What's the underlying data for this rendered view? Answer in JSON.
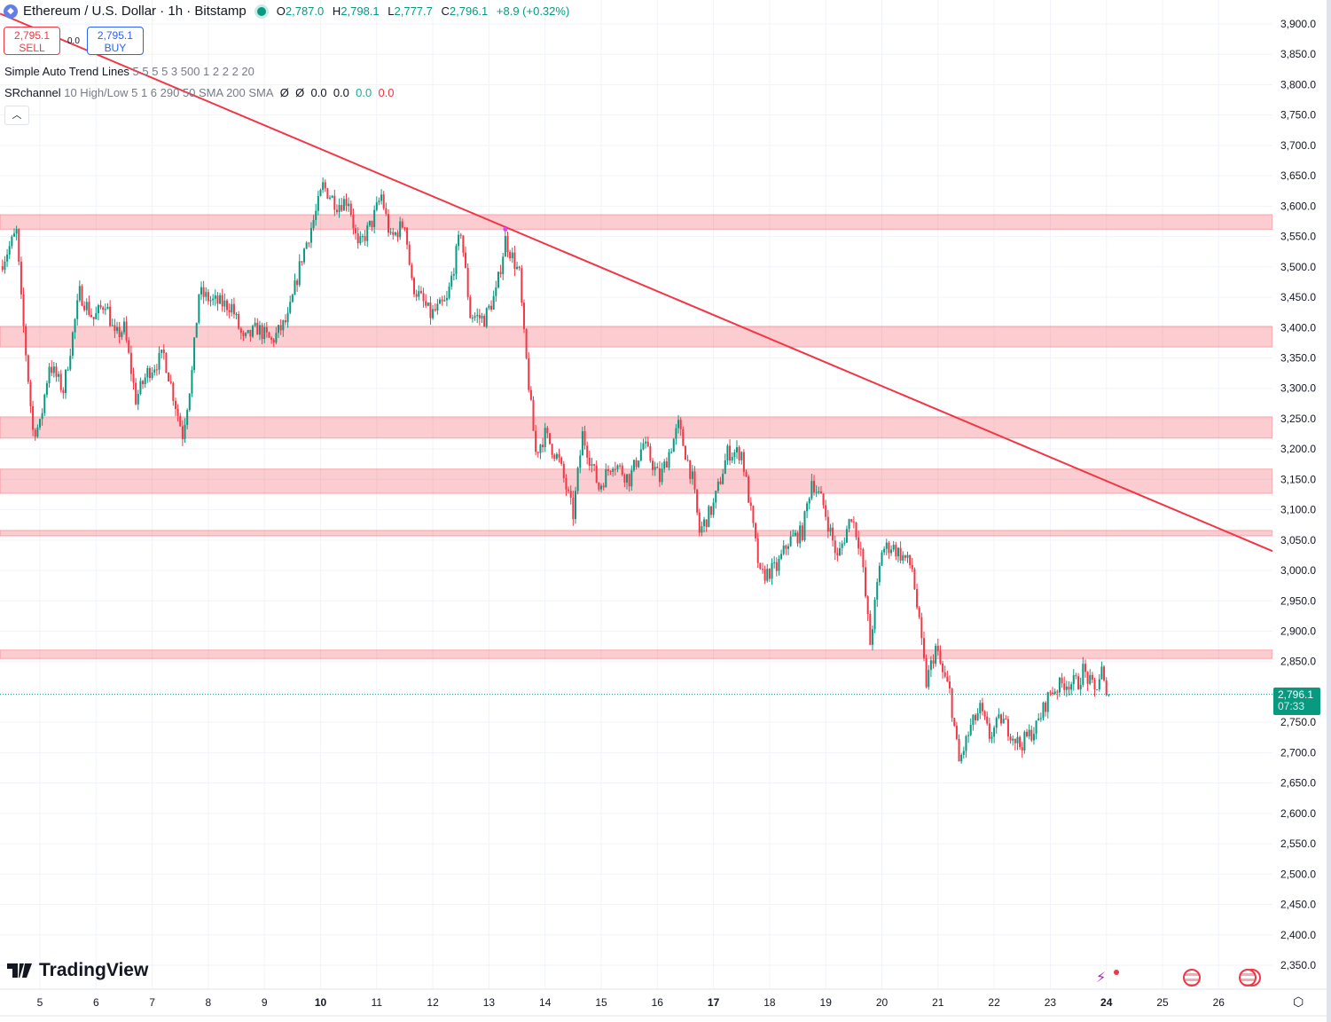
{
  "header": {
    "symbol_title": "Ethereum / U.S. Dollar · 1h · Bitstamp",
    "status": "market-open",
    "ohlc": {
      "o_label": "O",
      "o": "2,787.0",
      "h_label": "H",
      "h": "2,798.1",
      "l_label": "L",
      "l": "2,777.7",
      "c_label": "C",
      "c": "2,796.1",
      "change": "+8.9 (+0.32%)"
    }
  },
  "trade": {
    "sell_price": "2,795.1",
    "sell_label": "SELL",
    "spread": "0.0",
    "buy_price": "2,795.1",
    "buy_label": "BUY"
  },
  "indicators": [
    {
      "name": "Simple Auto Trend Lines",
      "params": "5 5 5 5 3 500 1 2 2 2 20"
    },
    {
      "name": "SRchannel",
      "params": "10 High/Low 5 1 6 290 50 SMA 200 SMA",
      "values": [
        "Ø",
        "Ø",
        "0.0",
        "0.0"
      ],
      "green": "0.0",
      "red": "0.0"
    }
  ],
  "collapse_icon": "chevron-up-icon",
  "logo_text": "TradingView",
  "current_price": {
    "price": "2,796.1",
    "countdown": "07:33"
  },
  "colors": {
    "up": "#089981",
    "down": "#f23645",
    "trend": "#f23645",
    "zone": "#f7a8b3",
    "grid": "#f0f3fa",
    "buy": "#2962ff"
  },
  "chart_data": {
    "type": "candlestick",
    "interval": "1h",
    "x_tick_labels": [
      "5",
      "6",
      "7",
      "8",
      "9",
      "10",
      "11",
      "12",
      "13",
      "14",
      "15",
      "16",
      "17",
      "18",
      "19",
      "20",
      "21",
      "22",
      "23",
      "24",
      "25",
      "26"
    ],
    "bold_x_ticks": [
      "10",
      "17",
      "24"
    ],
    "y_tick_labels": [
      "3,900.0",
      "3,850.0",
      "3,800.0",
      "3,750.0",
      "3,700.0",
      "3,650.0",
      "3,600.0",
      "3,550.0",
      "3,500.0",
      "3,450.0",
      "3,400.0",
      "3,350.0",
      "3,300.0",
      "3,250.0",
      "3,200.0",
      "3,150.0",
      "3,100.0",
      "3,050.0",
      "3,000.0",
      "2,950.0",
      "2,900.0",
      "2,850.0",
      "2,800.0",
      "2,750.0",
      "2,700.0",
      "2,650.0",
      "2,600.0",
      "2,550.0",
      "2,500.0",
      "2,450.0",
      "2,400.0",
      "2,350.0"
    ],
    "ylim": [
      2330,
      3930
    ],
    "grid": true,
    "price_path": [
      [
        "4 07:00",
        3501
      ],
      [
        "4 14:00",
        3557
      ],
      [
        "4 16:00",
        3443
      ],
      [
        "4 21:00",
        3230
      ],
      [
        "5 00:00",
        3238
      ],
      [
        "5 04:00",
        3340
      ],
      [
        "5 10:00",
        3297
      ],
      [
        "5 17:00",
        3457
      ],
      [
        "5 23:00",
        3414
      ],
      [
        "6 04:00",
        3443
      ],
      [
        "6 08:00",
        3384
      ],
      [
        "6 12:00",
        3399
      ],
      [
        "6 17:00",
        3282
      ],
      [
        "6 22:00",
        3326
      ],
      [
        "7 05:00",
        3355
      ],
      [
        "7 13:00",
        3224
      ],
      [
        "7 17:00",
        3326
      ],
      [
        "7 20:00",
        3457
      ],
      [
        "8 02:00",
        3443
      ],
      [
        "8 10:00",
        3435
      ],
      [
        "8 15:00",
        3377
      ],
      [
        "8 21:00",
        3399
      ],
      [
        "9 03:00",
        3377
      ],
      [
        "9 10:00",
        3414
      ],
      [
        "9 16:00",
        3516
      ],
      [
        "9 22:00",
        3589
      ],
      [
        "10 01:00",
        3633
      ],
      [
        "10 07:00",
        3603
      ],
      [
        "10 12:00",
        3611
      ],
      [
        "10 16:00",
        3530
      ],
      [
        "10 22:00",
        3574
      ],
      [
        "11 02:00",
        3618
      ],
      [
        "11 06:00",
        3545
      ],
      [
        "11 12:00",
        3574
      ],
      [
        "11 15:00",
        3472
      ],
      [
        "11 23:00",
        3421
      ],
      [
        "12 06:00",
        3443
      ],
      [
        "12 12:00",
        3560
      ],
      [
        "12 16:00",
        3421
      ],
      [
        "12 22:00",
        3414
      ],
      [
        "13 03:00",
        3457
      ],
      [
        "13 07:00",
        3545
      ],
      [
        "13 13:00",
        3487
      ],
      [
        "13 15:00",
        3384
      ],
      [
        "13 18:00",
        3267
      ],
      [
        "13 20:00",
        3194
      ],
      [
        "14 00:00",
        3224
      ],
      [
        "14 06:00",
        3180
      ],
      [
        "14 12:00",
        3092
      ],
      [
        "14 16:00",
        3224
      ],
      [
        "14 23:00",
        3136
      ],
      [
        "15 05:00",
        3180
      ],
      [
        "15 12:00",
        3150
      ],
      [
        "15 18:00",
        3209
      ],
      [
        "16 01:00",
        3150
      ],
      [
        "16 09:00",
        3238
      ],
      [
        "16 15:00",
        3150
      ],
      [
        "16 18:00",
        3063
      ],
      [
        "17 00:00",
        3107
      ],
      [
        "17 06:00",
        3194
      ],
      [
        "17 12:00",
        3194
      ],
      [
        "17 15:00",
        3121
      ],
      [
        "17 20:00",
        2990
      ],
      [
        "18 03:00",
        3004
      ],
      [
        "18 08:00",
        3048
      ],
      [
        "18 14:00",
        3063
      ],
      [
        "18 18:00",
        3150
      ],
      [
        "18 23:00",
        3107
      ],
      [
        "19 05:00",
        3019
      ],
      [
        "19 11:00",
        3092
      ],
      [
        "19 15:00",
        3034
      ],
      [
        "19 19:00",
        2880
      ],
      [
        "20 00:00",
        3034
      ],
      [
        "20 04:00",
        3041
      ],
      [
        "20 10:00",
        3019
      ],
      [
        "20 13:00",
        3004
      ],
      [
        "20 19:00",
        2815
      ],
      [
        "20 23:00",
        2873
      ],
      [
        "21 02:00",
        2830
      ],
      [
        "21 05:00",
        2800
      ],
      [
        "21 09:00",
        2683
      ],
      [
        "21 14:00",
        2742
      ],
      [
        "21 18:00",
        2771
      ],
      [
        "21 22:00",
        2727
      ],
      [
        "22 03:00",
        2756
      ],
      [
        "22 11:00",
        2712
      ],
      [
        "22 18:00",
        2742
      ],
      [
        "23 00:00",
        2800
      ],
      [
        "23 06:00",
        2815
      ],
      [
        "23 12:00",
        2815
      ],
      [
        "23 14:00",
        2836
      ],
      [
        "23 19:00",
        2800
      ],
      [
        "23 22:00",
        2836
      ],
      [
        "24 00:00",
        2786
      ],
      [
        "24 01:00",
        2796.1
      ]
    ],
    "sr_zones": [
      [
        3562,
        3586
      ],
      [
        3368,
        3402
      ],
      [
        3218,
        3253
      ],
      [
        3127,
        3167
      ],
      [
        3057,
        3066
      ],
      [
        2855,
        2869
      ]
    ],
    "trend_line": [
      [
        "4 07:00",
        3917
      ],
      [
        "26 23:00",
        3032
      ]
    ],
    "pivot_marker": [
      "13 07:00",
      3562
    ],
    "last_price": 2796.1
  }
}
